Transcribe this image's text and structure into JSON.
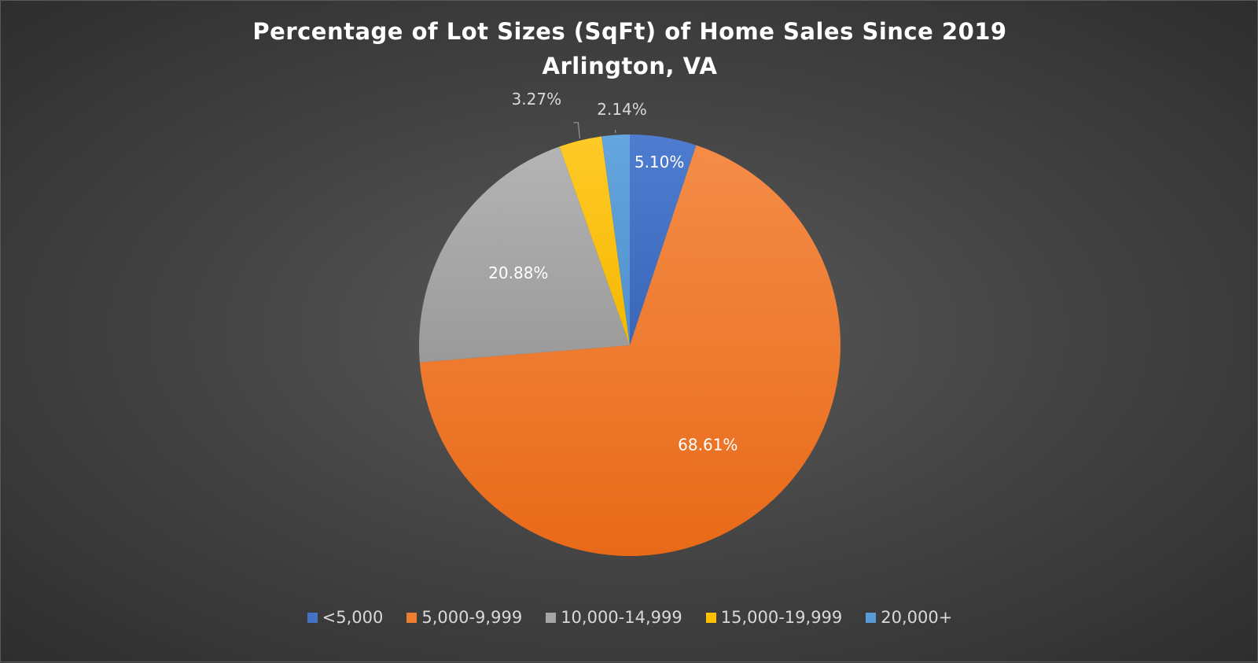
{
  "chart_data": {
    "type": "pie",
    "title": "Percentage of Lot Sizes (SqFt) of Home Sales Since 2019",
    "subtitle": "Arlington, VA",
    "categories": [
      "<5,000",
      "5,000-9,999",
      "10,000-14,999",
      "15,000-19,999",
      "20,000+"
    ],
    "values": [
      5.1,
      68.61,
      20.88,
      3.27,
      2.14
    ],
    "labels": [
      "5.10%",
      "68.61%",
      "20.88%",
      "3.27%",
      "2.14%"
    ],
    "colors": [
      "#4472C4",
      "#ED7D31",
      "#A5A5A5",
      "#FFC000",
      "#5B9BD5"
    ],
    "legend_position": "bottom"
  }
}
